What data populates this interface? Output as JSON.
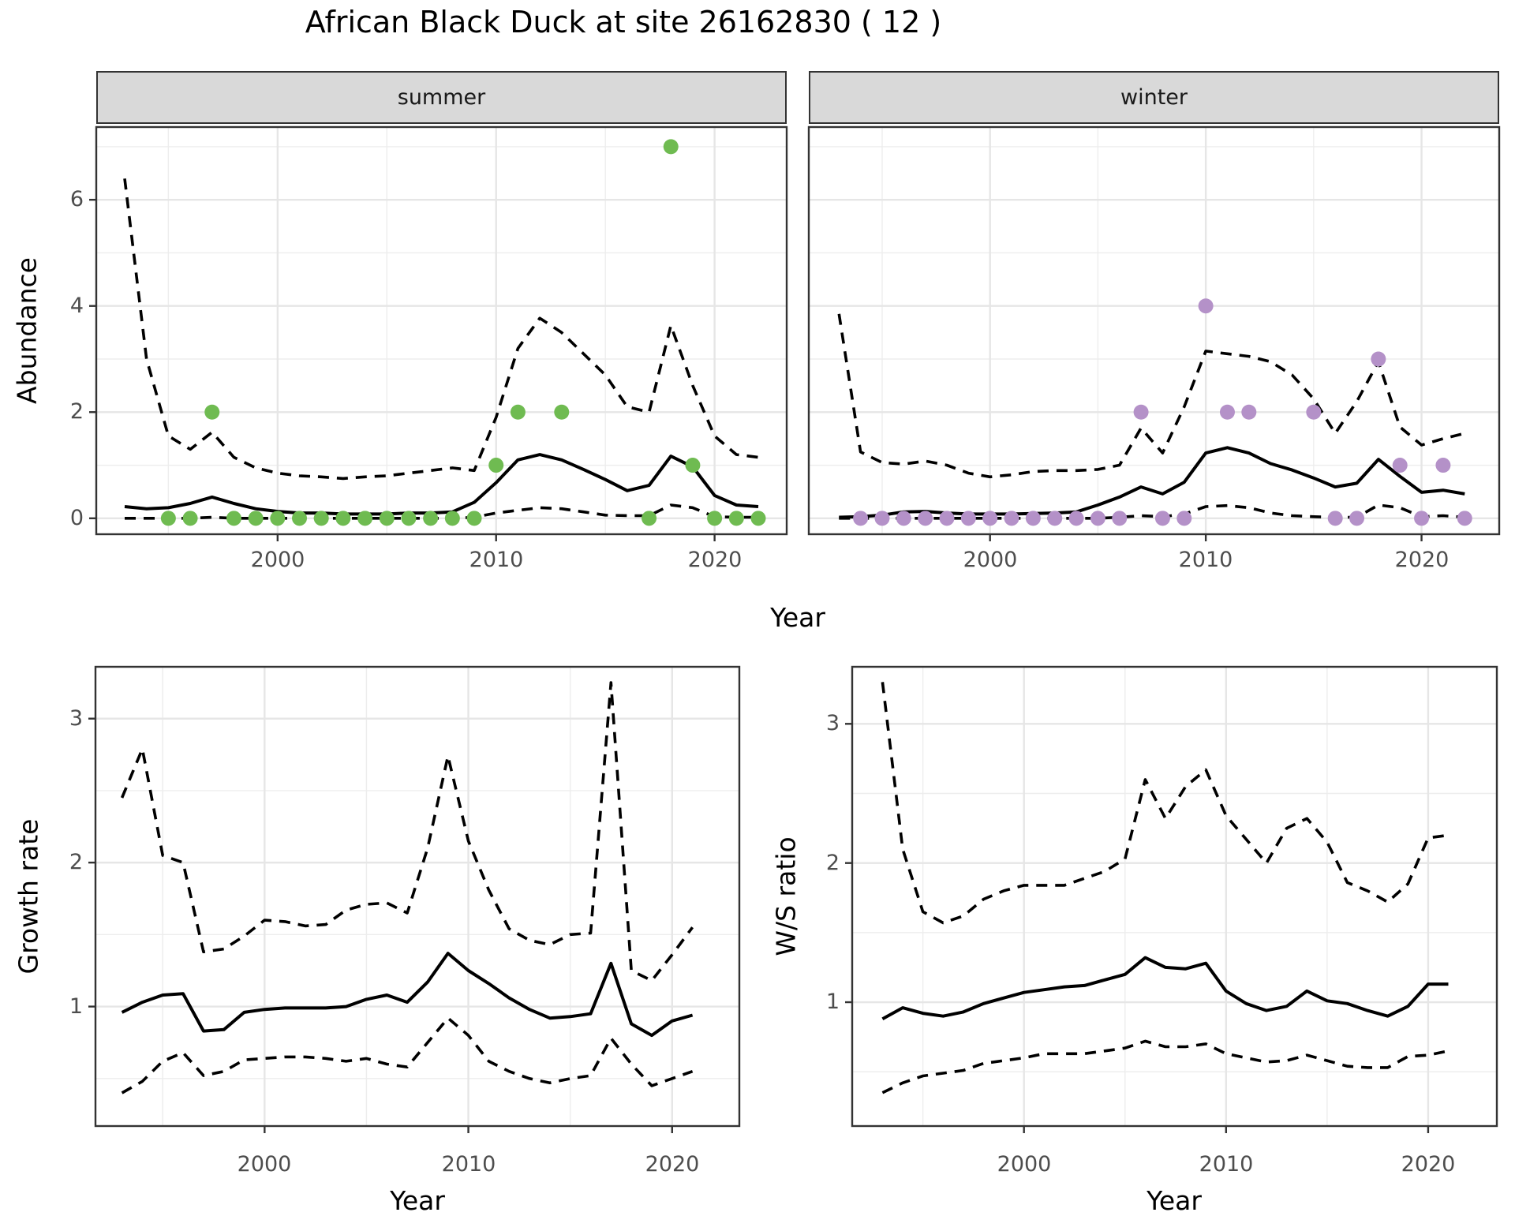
{
  "title": "African Black Duck at site 26162830 ( 12 )",
  "axes": {
    "x_label": "Year",
    "abundance_label": "Abundance",
    "growth_label": "Growth rate",
    "ws_label": "W/S ratio"
  },
  "facets": {
    "summer": "summer",
    "winter": "winter"
  },
  "colors": {
    "summer_point": "#6FBB51",
    "winter_point": "#B491C8",
    "line": "#000000",
    "grid_major": "#e6e6e6",
    "grid_minor": "#ededed",
    "panel_border": "#333333",
    "strip_bg": "#d9d9d9",
    "tick_text": "#4d4d4d"
  },
  "chart_data": [
    {
      "id": "abundance-summer",
      "type": "line",
      "facet": "summer",
      "xlabel": "Year",
      "ylabel": "Abundance",
      "xlim": [
        1991.7,
        2023.3
      ],
      "ylim": [
        -0.3,
        7.37
      ],
      "xticks": [
        2000,
        2010,
        2020
      ],
      "xticks_minor": [
        1995,
        2005,
        2015
      ],
      "yticks": [
        0,
        2,
        4,
        6
      ],
      "yticks_minor": [
        1,
        3,
        5,
        7
      ],
      "x": [
        1993,
        1994,
        1995,
        1996,
        1997,
        1998,
        1999,
        2000,
        2001,
        2002,
        2003,
        2004,
        2005,
        2006,
        2007,
        2008,
        2009,
        2010,
        2011,
        2012,
        2013,
        2014,
        2015,
        2016,
        2017,
        2018,
        2019,
        2020,
        2021,
        2022
      ],
      "series": [
        {
          "name": "mean",
          "style": "solid",
          "values": [
            0.22,
            0.18,
            0.2,
            0.28,
            0.4,
            0.28,
            0.18,
            0.13,
            0.1,
            0.1,
            0.08,
            0.08,
            0.08,
            0.1,
            0.1,
            0.12,
            0.3,
            0.67,
            1.1,
            1.2,
            1.1,
            0.92,
            0.73,
            0.52,
            0.62,
            1.17,
            0.97,
            0.43,
            0.25,
            0.22
          ]
        },
        {
          "name": "upper_ci",
          "style": "dashed",
          "values": [
            6.4,
            3.0,
            1.55,
            1.3,
            1.62,
            1.15,
            0.95,
            0.85,
            0.8,
            0.78,
            0.75,
            0.78,
            0.8,
            0.85,
            0.9,
            0.95,
            0.9,
            1.9,
            3.2,
            3.77,
            3.5,
            3.1,
            2.7,
            2.1,
            2.0,
            3.63,
            2.5,
            1.55,
            1.2,
            1.15
          ]
        },
        {
          "name": "lower_ci",
          "style": "dashed",
          "values": [
            0.0,
            0.0,
            0.0,
            0.0,
            0.02,
            0.0,
            0.0,
            0.0,
            0.0,
            0.0,
            0.0,
            0.0,
            0.0,
            0.0,
            0.0,
            0.0,
            0.02,
            0.1,
            0.15,
            0.2,
            0.18,
            0.12,
            0.06,
            0.05,
            0.05,
            0.25,
            0.2,
            0.03,
            0.02,
            0.02
          ]
        }
      ],
      "points": {
        "label": "observed-counts-summer",
        "color_key": "summer_point",
        "x": [
          1995,
          1996,
          1997,
          1998,
          1999,
          2000,
          2001,
          2002,
          2003,
          2004,
          2005,
          2006,
          2007,
          2008,
          2009,
          2010,
          2011,
          2013,
          2017,
          2018,
          2019,
          2020,
          2021,
          2022
        ],
        "y": [
          0,
          0,
          2,
          0,
          0,
          0,
          0,
          0,
          0,
          0,
          0,
          0,
          0,
          0,
          0,
          1,
          2,
          2,
          0,
          7,
          1,
          0,
          0,
          0
        ]
      }
    },
    {
      "id": "abundance-winter",
      "type": "line",
      "facet": "winter",
      "xlabel": "Year",
      "ylabel": "Abundance",
      "xlim": [
        1991.6,
        2023.6
      ],
      "ylim": [
        -0.3,
        7.37
      ],
      "xticks": [
        2000,
        2010,
        2020
      ],
      "xticks_minor": [
        1995,
        2005,
        2015
      ],
      "yticks": [
        0,
        2,
        4,
        6
      ],
      "yticks_minor": [
        1,
        3,
        5,
        7
      ],
      "x": [
        1993,
        1994,
        1995,
        1996,
        1997,
        1998,
        1999,
        2000,
        2001,
        2002,
        2003,
        2004,
        2005,
        2006,
        2007,
        2008,
        2009,
        2010,
        2011,
        2012,
        2013,
        2014,
        2015,
        2016,
        2017,
        2018,
        2019,
        2020,
        2021,
        2022
      ],
      "series": [
        {
          "name": "mean",
          "style": "solid",
          "values": [
            0.02,
            0.03,
            0.06,
            0.12,
            0.13,
            0.1,
            0.08,
            0.08,
            0.08,
            0.09,
            0.1,
            0.12,
            0.25,
            0.4,
            0.59,
            0.46,
            0.68,
            1.23,
            1.33,
            1.23,
            1.03,
            0.91,
            0.76,
            0.59,
            0.66,
            1.11,
            0.79,
            0.49,
            0.53,
            0.46
          ]
        },
        {
          "name": "upper_ci",
          "style": "dashed",
          "values": [
            3.85,
            1.25,
            1.05,
            1.02,
            1.08,
            1.0,
            0.85,
            0.78,
            0.82,
            0.88,
            0.9,
            0.9,
            0.92,
            1.0,
            1.7,
            1.23,
            2.1,
            3.15,
            3.1,
            3.05,
            2.95,
            2.7,
            2.25,
            1.6,
            2.2,
            2.95,
            1.72,
            1.38,
            1.5,
            1.6
          ]
        },
        {
          "name": "lower_ci",
          "style": "dashed",
          "values": [
            0.0,
            0.0,
            0.0,
            0.0,
            0.0,
            0.0,
            0.0,
            0.0,
            0.0,
            0.0,
            0.0,
            0.0,
            0.0,
            0.02,
            0.05,
            0.03,
            0.08,
            0.22,
            0.24,
            0.2,
            0.1,
            0.05,
            0.03,
            0.02,
            0.02,
            0.25,
            0.2,
            0.03,
            0.05,
            0.02
          ]
        }
      ],
      "points": {
        "label": "observed-counts-winter",
        "color_key": "winter_point",
        "x": [
          1994,
          1995,
          1996,
          1997,
          1998,
          1999,
          2000,
          2001,
          2002,
          2003,
          2004,
          2005,
          2006,
          2007,
          2008,
          2009,
          2010,
          2011,
          2012,
          2015,
          2016,
          2017,
          2018,
          2019,
          2020,
          2021,
          2022
        ],
        "y": [
          0,
          0,
          0,
          0,
          0,
          0,
          0,
          0,
          0,
          0,
          0,
          0,
          0,
          2,
          0,
          0,
          4,
          2,
          2,
          2,
          0,
          0,
          3,
          1,
          0,
          1,
          0
        ]
      }
    },
    {
      "id": "growth-rate",
      "type": "line",
      "xlabel": "Year",
      "ylabel": "Growth rate",
      "xlim": [
        1991.7,
        2023.3
      ],
      "ylim": [
        0.17,
        3.36
      ],
      "xticks": [
        2000,
        2010,
        2020
      ],
      "xticks_minor": [
        1995,
        2005,
        2015
      ],
      "yticks": [
        1,
        2,
        3
      ],
      "yticks_minor": [
        0.5,
        1.5,
        2.5
      ],
      "x": [
        1993,
        1994,
        1995,
        1996,
        1997,
        1998,
        1999,
        2000,
        2001,
        2002,
        2003,
        2004,
        2005,
        2006,
        2007,
        2008,
        2009,
        2010,
        2011,
        2012,
        2013,
        2014,
        2015,
        2016,
        2017,
        2018,
        2019,
        2020,
        2021
      ],
      "series": [
        {
          "name": "mean",
          "style": "solid",
          "values": [
            0.96,
            1.03,
            1.08,
            1.09,
            0.83,
            0.84,
            0.96,
            0.98,
            0.99,
            0.99,
            0.99,
            1.0,
            1.05,
            1.08,
            1.03,
            1.17,
            1.37,
            1.25,
            1.16,
            1.06,
            0.98,
            0.92,
            0.93,
            0.95,
            1.3,
            0.88,
            0.8,
            0.9,
            0.94
          ]
        },
        {
          "name": "upper_ci",
          "style": "dashed",
          "values": [
            2.45,
            2.79,
            2.05,
            2.0,
            1.38,
            1.4,
            1.49,
            1.6,
            1.59,
            1.56,
            1.57,
            1.67,
            1.71,
            1.72,
            1.65,
            2.1,
            2.74,
            2.15,
            1.81,
            1.54,
            1.46,
            1.43,
            1.5,
            1.51,
            3.25,
            1.25,
            1.18,
            1.36,
            1.55
          ]
        },
        {
          "name": "lower_ci",
          "style": "dashed",
          "values": [
            0.4,
            0.48,
            0.62,
            0.68,
            0.52,
            0.55,
            0.63,
            0.64,
            0.65,
            0.65,
            0.64,
            0.62,
            0.64,
            0.6,
            0.58,
            0.75,
            0.92,
            0.8,
            0.62,
            0.55,
            0.5,
            0.47,
            0.5,
            0.52,
            0.78,
            0.6,
            0.45,
            0.5,
            0.55
          ]
        }
      ]
    },
    {
      "id": "ws-ratio",
      "type": "line",
      "xlabel": "Year",
      "ylabel": "W/S ratio",
      "xlim": [
        1991.5,
        2023.4
      ],
      "ylim": [
        0.11,
        3.41
      ],
      "xticks": [
        2000,
        2010,
        2020
      ],
      "xticks_minor": [
        1995,
        2005,
        2015
      ],
      "yticks": [
        1,
        2,
        3
      ],
      "yticks_minor": [
        0.5,
        1.5,
        2.5
      ],
      "x": [
        1993,
        1994,
        1995,
        1996,
        1997,
        1998,
        1999,
        2000,
        2001,
        2002,
        2003,
        2004,
        2005,
        2006,
        2007,
        2008,
        2009,
        2010,
        2011,
        2012,
        2013,
        2014,
        2015,
        2016,
        2017,
        2018,
        2019,
        2020,
        2021
      ],
      "series": [
        {
          "name": "mean",
          "style": "solid",
          "values": [
            0.88,
            0.96,
            0.92,
            0.9,
            0.93,
            0.99,
            1.03,
            1.07,
            1.09,
            1.11,
            1.12,
            1.16,
            1.2,
            1.32,
            1.25,
            1.24,
            1.28,
            1.08,
            0.99,
            0.94,
            0.97,
            1.08,
            1.01,
            0.99,
            0.94,
            0.9,
            0.97,
            1.13,
            1.13
          ]
        },
        {
          "name": "upper_ci",
          "style": "dashed",
          "values": [
            3.3,
            2.1,
            1.65,
            1.57,
            1.62,
            1.74,
            1.8,
            1.84,
            1.84,
            1.84,
            1.89,
            1.94,
            2.03,
            2.6,
            2.32,
            2.55,
            2.67,
            2.34,
            2.17,
            2.0,
            2.25,
            2.32,
            2.15,
            1.86,
            1.8,
            1.72,
            1.85,
            2.18,
            2.2
          ]
        },
        {
          "name": "lower_ci",
          "style": "dashed",
          "values": [
            0.35,
            0.42,
            0.47,
            0.49,
            0.51,
            0.56,
            0.58,
            0.6,
            0.63,
            0.63,
            0.63,
            0.65,
            0.67,
            0.72,
            0.68,
            0.68,
            0.7,
            0.63,
            0.6,
            0.57,
            0.58,
            0.62,
            0.58,
            0.54,
            0.53,
            0.53,
            0.61,
            0.62,
            0.65
          ]
        }
      ]
    }
  ]
}
